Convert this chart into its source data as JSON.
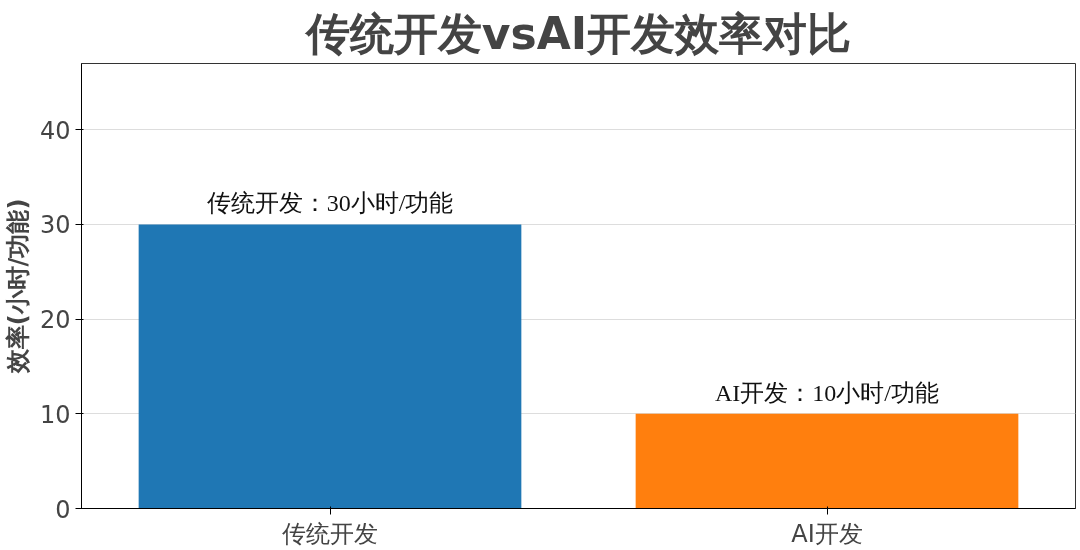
{
  "chart_data": {
    "type": "bar",
    "title": "传统开发vsAI开发效率对比",
    "ylabel": "效率(小时/功能)",
    "categories": [
      "传统开发",
      "AI开发"
    ],
    "values": [
      30,
      10
    ],
    "colors": [
      "#1f77b4",
      "#ff7f0e"
    ],
    "value_labels": [
      "传统开发：30小时/功能",
      "AI开发：10小时/功能"
    ],
    "ylim": [
      0,
      47
    ],
    "yticks": [
      0,
      10,
      20,
      30,
      40
    ],
    "grid": "y"
  }
}
